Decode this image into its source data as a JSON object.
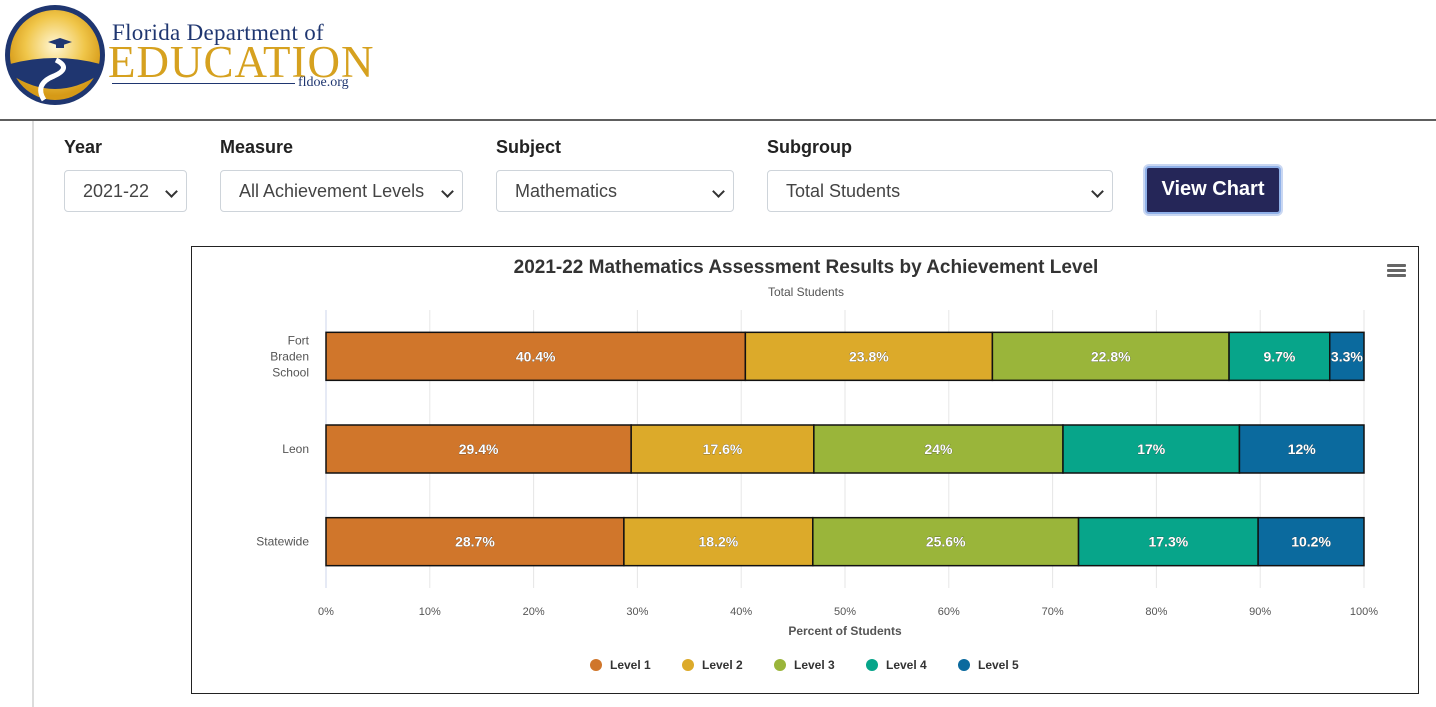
{
  "header": {
    "org_line1": "Florida Department of",
    "org_line2": "EDUCATION",
    "site": "fldoe.org"
  },
  "filters": {
    "year_label": "Year",
    "year_value": "2021-22",
    "measure_label": "Measure",
    "measure_value": "All Achievement Levels",
    "subject_label": "Subject",
    "subject_value": "Mathematics",
    "subgroup_label": "Subgroup",
    "subgroup_value": "Total Students",
    "view_button": "View Chart"
  },
  "chart_data": {
    "type": "bar",
    "orientation": "horizontal",
    "stacking": "percent",
    "title": "2021-22 Mathematics Assessment Results by Achievement Level",
    "subtitle": "Total Students",
    "xlabel": "Percent of Students",
    "xlim": [
      0,
      100
    ],
    "xticks": [
      "0%",
      "10%",
      "20%",
      "30%",
      "40%",
      "50%",
      "60%",
      "70%",
      "80%",
      "90%",
      "100%"
    ],
    "categories": [
      "Fort Braden School",
      "Leon",
      "Statewide"
    ],
    "series": [
      {
        "name": "Level 1",
        "color": "#d0762b",
        "values": [
          40.4,
          29.4,
          28.7
        ],
        "labels": [
          "40.4%",
          "29.4%",
          "28.7%"
        ]
      },
      {
        "name": "Level 2",
        "color": "#dcaa2a",
        "values": [
          23.8,
          17.6,
          18.2
        ],
        "labels": [
          "23.8%",
          "17.6%",
          "18.2%"
        ]
      },
      {
        "name": "Level 3",
        "color": "#9ab53a",
        "values": [
          22.8,
          24,
          25.6
        ],
        "labels": [
          "22.8%",
          "24%",
          "25.6%"
        ]
      },
      {
        "name": "Level 4",
        "color": "#07a58a",
        "values": [
          9.7,
          17,
          17.3
        ],
        "labels": [
          "9.7%",
          "17%",
          "17.3%"
        ]
      },
      {
        "name": "Level 5",
        "color": "#0b6a9e",
        "values": [
          3.3,
          12,
          10.2
        ],
        "labels": [
          "3.3%",
          "12%",
          "10.2%"
        ]
      }
    ],
    "legend_position": "bottom",
    "grid": true
  }
}
